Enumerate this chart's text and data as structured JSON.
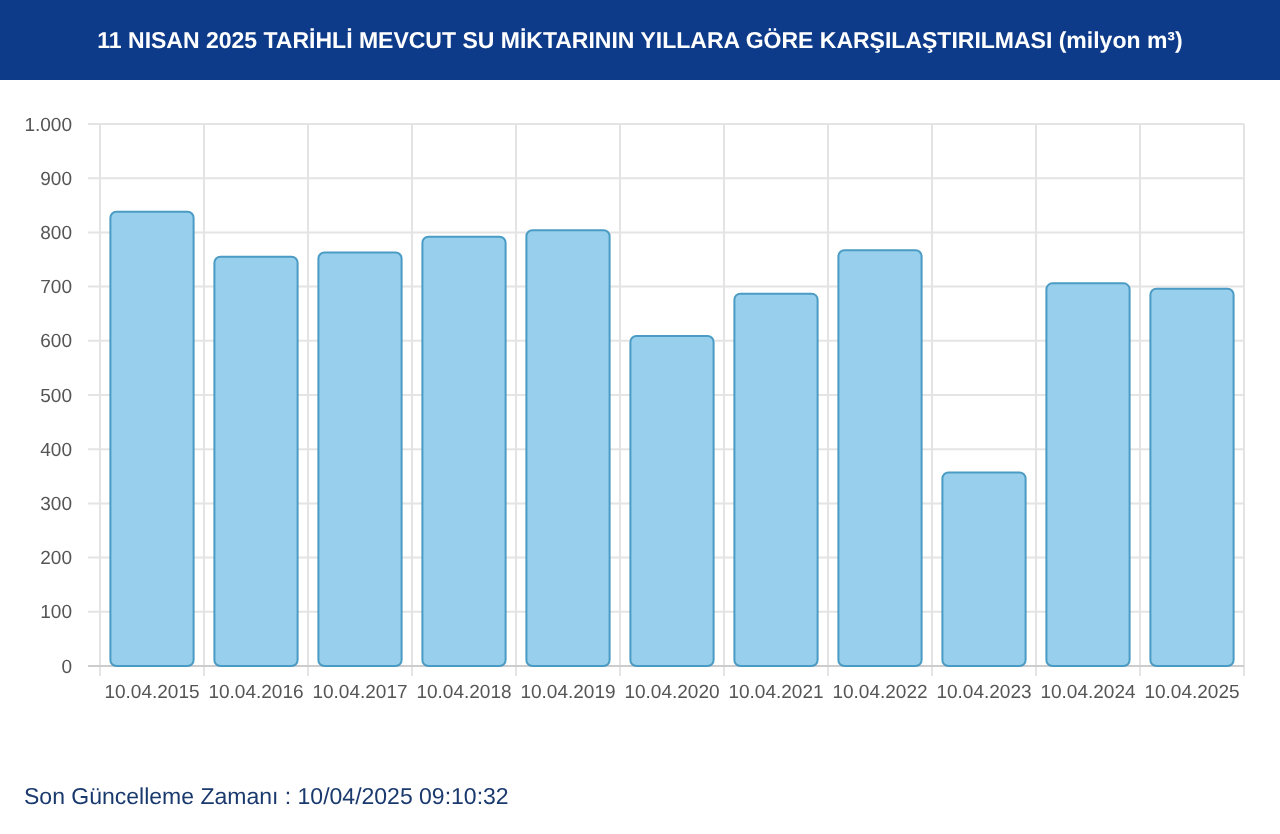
{
  "chart_data": {
    "type": "bar",
    "title": "11 NISAN 2025 TARİHLİ MEVCUT SU MİKTARININ YILLARA GÖRE KARŞILAŞTIRILMASI (milyon m³)",
    "categories": [
      "10.04.2015",
      "10.04.2016",
      "10.04.2017",
      "10.04.2018",
      "10.04.2019",
      "10.04.2020",
      "10.04.2021",
      "10.04.2022",
      "10.04.2023",
      "10.04.2024",
      "10.04.2025"
    ],
    "values": [
      838,
      755,
      763,
      792,
      804,
      609,
      687,
      767,
      357,
      706,
      696
    ],
    "color": "#98cfec",
    "ylim": [
      0,
      1000
    ],
    "yticks": [
      0,
      100,
      200,
      300,
      400,
      500,
      600,
      700,
      800,
      900,
      {
        "value": 1000,
        "label": "1.000"
      }
    ],
    "grid": true,
    "annotations": [
      "Son Güncelleme Zamanı : 10/04/2025 09:10:32"
    ]
  }
}
